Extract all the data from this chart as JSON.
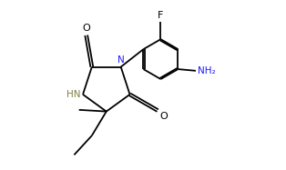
{
  "background": "#ffffff",
  "line_color": "#000000",
  "label_colors": {
    "O": "#000000",
    "N": "#1a1aff",
    "F": "#000000",
    "HN": "#808040",
    "NH2": "#1a1aff",
    "default": "#000000"
  },
  "lw": 1.3,
  "figsize": [
    3.14,
    1.87
  ],
  "dpi": 100
}
